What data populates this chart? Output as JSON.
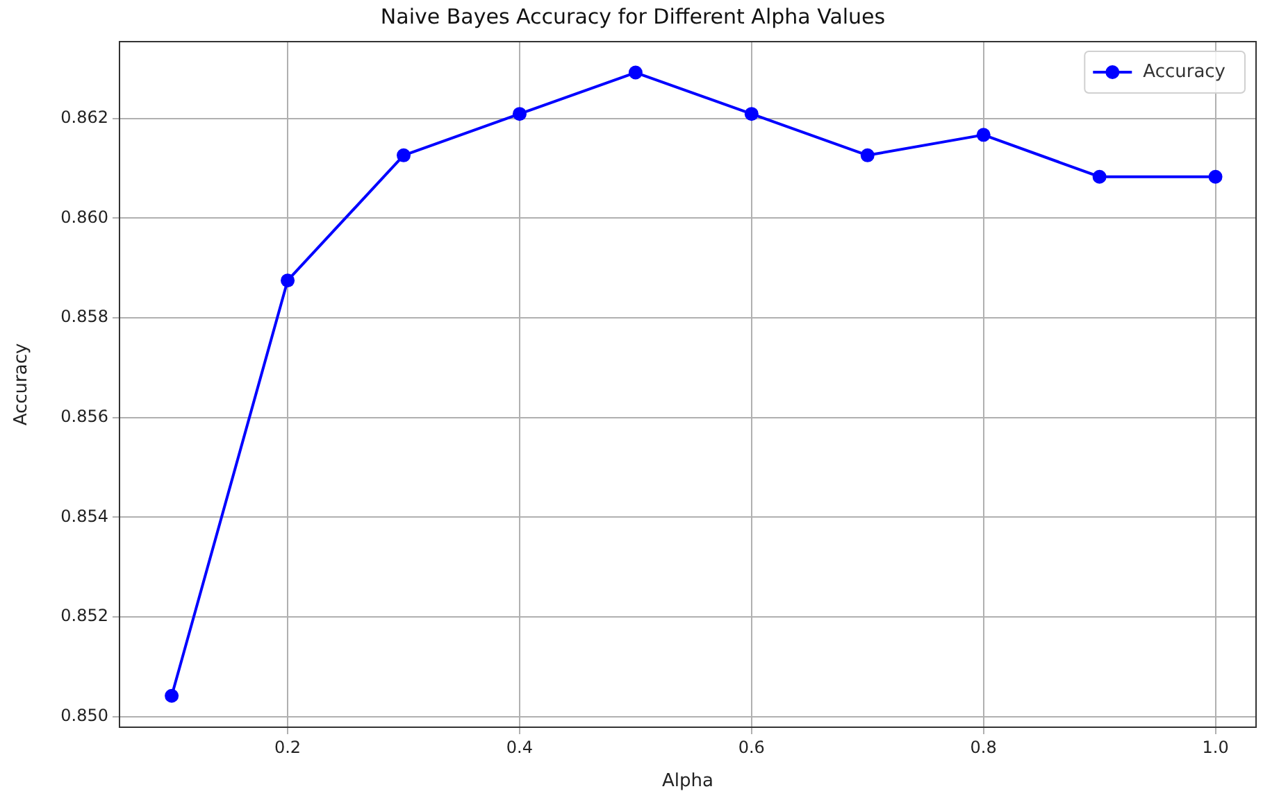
{
  "chart_data": {
    "type": "line",
    "title": "Naive Bayes Accuracy for Different Alpha Values",
    "xlabel": "Alpha",
    "ylabel": "Accuracy",
    "x": [
      0.1,
      0.2,
      0.3,
      0.4,
      0.5,
      0.6,
      0.7,
      0.8,
      0.9,
      1.0
    ],
    "series": [
      {
        "name": "Accuracy",
        "color": "#0000ff",
        "values": [
          0.85042,
          0.85875,
          0.86126,
          0.86209,
          0.86292,
          0.86209,
          0.86126,
          0.86167,
          0.86083,
          0.86083
        ]
      }
    ],
    "xlim": [
      0.055,
      1.035
    ],
    "xticks": [
      {
        "value": 0.2,
        "label": "0.2"
      },
      {
        "value": 0.4,
        "label": "0.4"
      },
      {
        "value": 0.6,
        "label": "0.6"
      },
      {
        "value": 0.8,
        "label": "0.8"
      },
      {
        "value": 1.0,
        "label": "1.0"
      }
    ],
    "ylim": [
      0.84979,
      0.86354
    ],
    "yticks": [
      {
        "value": 0.85,
        "label": "0.850"
      },
      0.852,
      0.854,
      0.856,
      0.858,
      {
        "value": 0.86,
        "label": "0.860"
      },
      {
        "value": 0.862,
        "label": "0.862"
      }
    ],
    "grid": true,
    "legend": "top right",
    "marker": "circle",
    "line_style": "solid"
  }
}
